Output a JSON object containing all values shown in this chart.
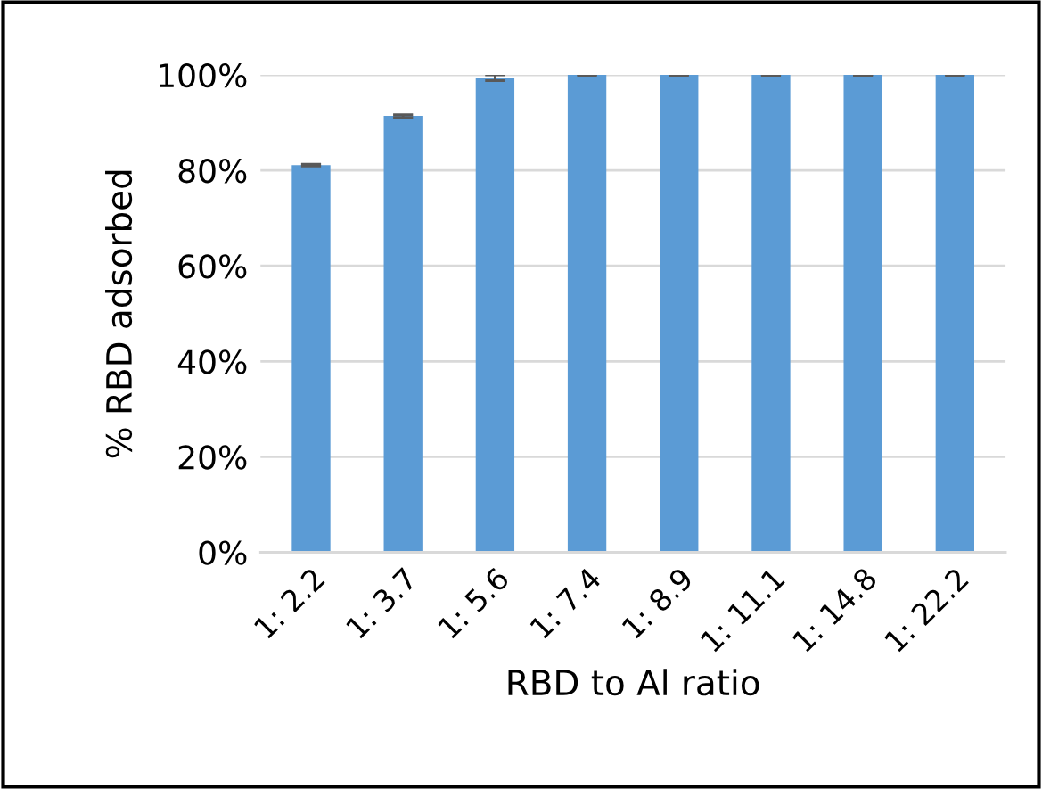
{
  "chart_data": {
    "type": "bar",
    "xlabel": "RBD to Al ratio",
    "ylabel": "% RBD adsorbed",
    "categories": [
      "1: 2.2",
      "1: 3.7",
      "1: 5.6",
      "1: 7.4",
      "1: 8.9",
      "1: 11.1",
      "1: 14.8",
      "1: 22.2"
    ],
    "values": [
      81.1,
      91.4,
      99.4,
      100,
      100,
      100,
      100,
      100
    ],
    "errors": [
      0.2,
      0.3,
      0.6,
      0.1,
      0.1,
      0.1,
      0.1,
      0.1
    ],
    "color": "#5b9bd5",
    "ylim": [
      0,
      100
    ],
    "yticks": [
      {
        "value": 0,
        "label": "0%"
      },
      {
        "value": 20,
        "label": "20%"
      },
      {
        "value": 40,
        "label": "40%"
      },
      {
        "value": 60,
        "label": "60%"
      },
      {
        "value": 80,
        "label": "80%"
      },
      {
        "value": 100,
        "label": "100%"
      }
    ],
    "grid": "y"
  }
}
